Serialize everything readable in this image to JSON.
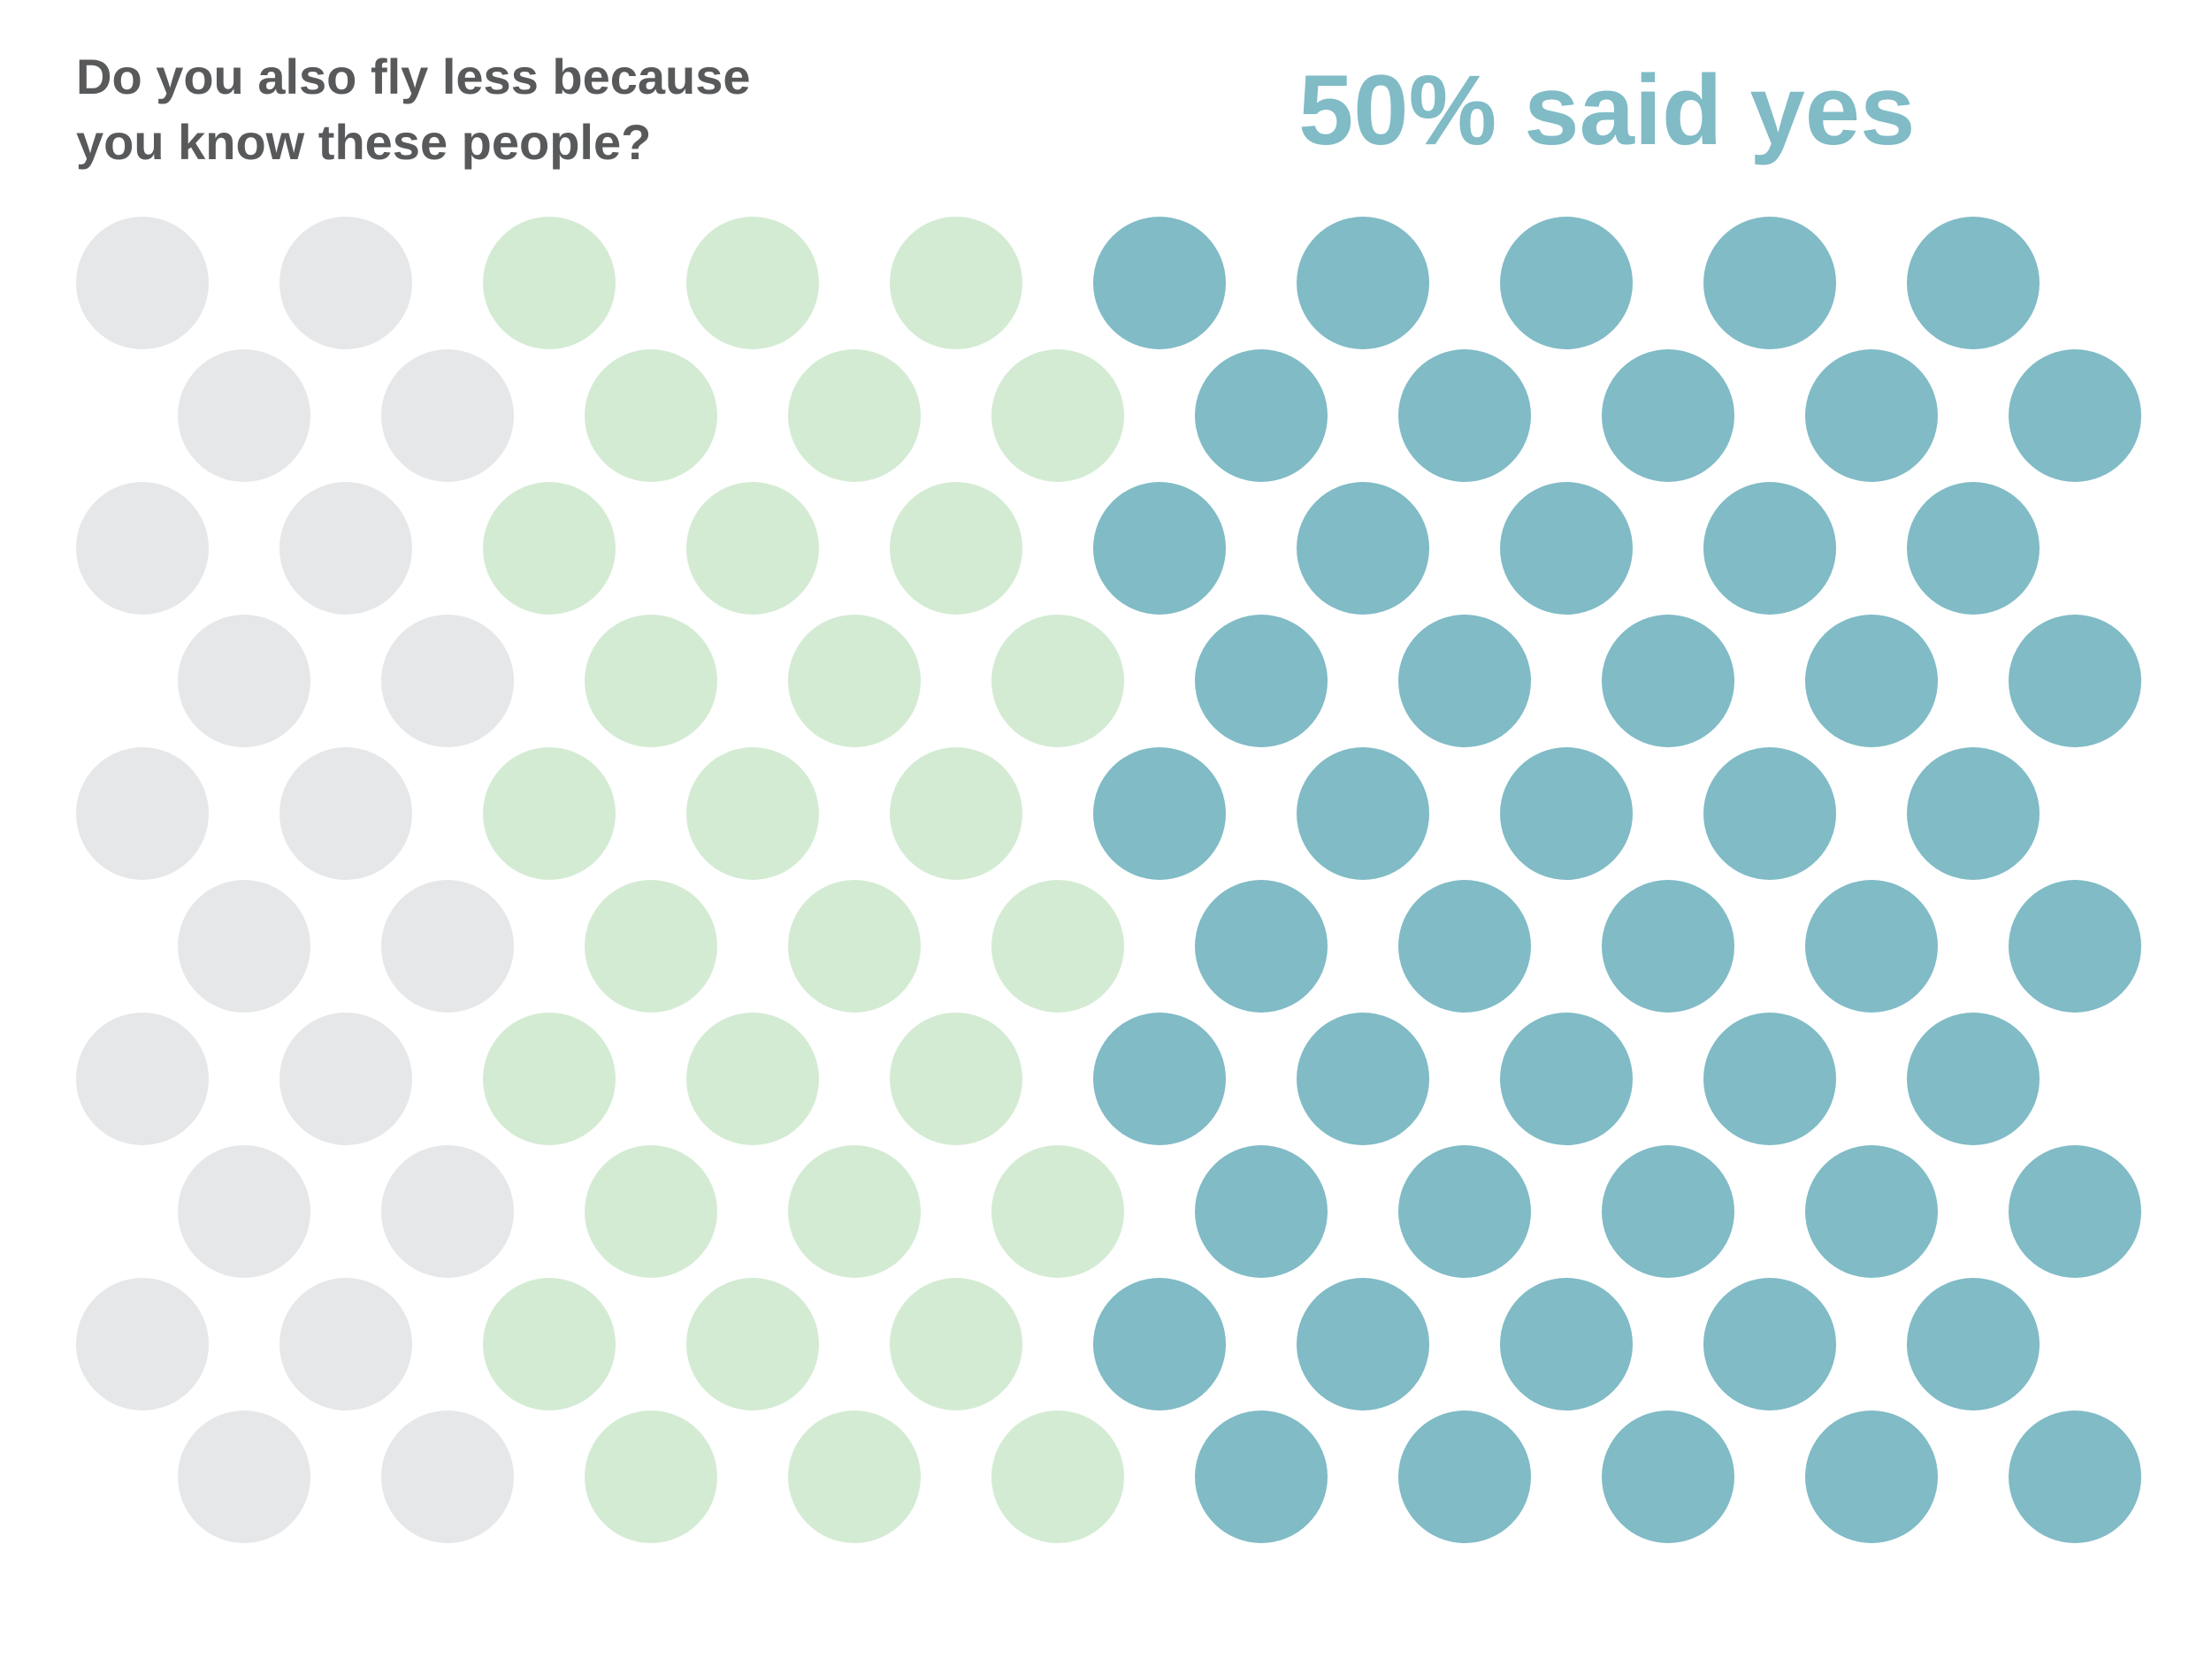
{
  "question": {
    "line1": "Do you also fly less because",
    "line2": "you know these people?"
  },
  "headline": "50% said yes",
  "colors": {
    "text": "#58595b",
    "accent": "#80bbc6",
    "gray": "#e6e7e9",
    "light_green": "#d3ebd3",
    "teal": "#80bbc6"
  },
  "chart_data": {
    "type": "dot-grid",
    "rows": 10,
    "dots_per_row": 10,
    "groups": [
      {
        "color": "#e6e7e9",
        "dots_per_row": 2,
        "share_percent": 20
      },
      {
        "color": "#d3ebd3",
        "dots_per_row": 3,
        "share_percent": 30
      },
      {
        "color": "#80bbc6",
        "dots_per_row": 5,
        "share_percent": 50
      }
    ]
  }
}
